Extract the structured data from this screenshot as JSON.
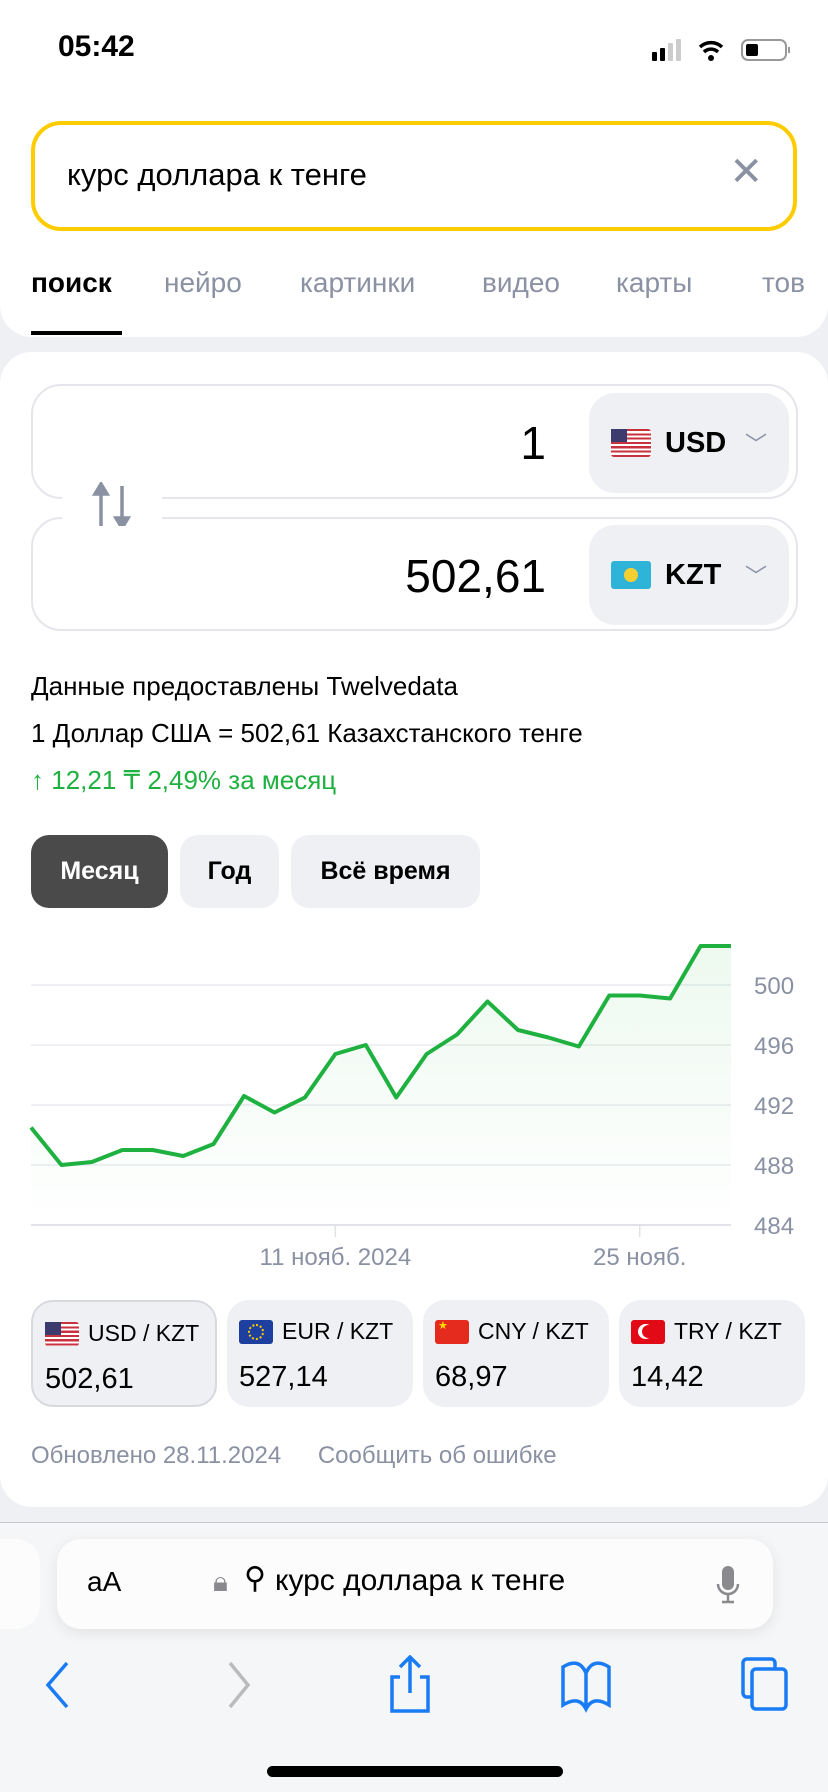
{
  "status_bar": {
    "time": "05:42"
  },
  "search": {
    "query": "курс доллара к тенге"
  },
  "tabs": [
    {
      "label": "поиск",
      "active": true
    },
    {
      "label": "нейро"
    },
    {
      "label": "картинки"
    },
    {
      "label": "видео"
    },
    {
      "label": "карты"
    },
    {
      "label": "тов"
    }
  ],
  "converter": {
    "from": {
      "amount": "1",
      "currency": "USD"
    },
    "to": {
      "amount": "502,61",
      "currency": "KZT"
    },
    "source": "Данные предоставлены Twelvedata",
    "rate_text": "1 Доллар США = 502,61 Казахстанского тенге",
    "change": {
      "arrow": "↑",
      "abs": "12,21 ₸",
      "pct": "2,49%",
      "period": "за месяц"
    },
    "accent_green": "#1fb140"
  },
  "periods": [
    {
      "label": "Месяц",
      "active": true
    },
    {
      "label": "Год"
    },
    {
      "label": "Всё время"
    }
  ],
  "chart_data": {
    "type": "area",
    "x": [
      "2024-10-28",
      "2024-10-29",
      "2024-10-30",
      "2024-10-31",
      "2024-11-01",
      "2024-11-04",
      "2024-11-05",
      "2024-11-06",
      "2024-11-07",
      "2024-11-08",
      "2024-11-11",
      "2024-11-12",
      "2024-11-13",
      "2024-11-14",
      "2024-11-15",
      "2024-11-18",
      "2024-11-19",
      "2024-11-20",
      "2024-11-21",
      "2024-11-22",
      "2024-11-25",
      "2024-11-26",
      "2024-11-27",
      "2024-11-28"
    ],
    "values": [
      490.5,
      488.0,
      488.2,
      489.0,
      489.0,
      488.6,
      489.4,
      492.6,
      491.5,
      492.5,
      495.4,
      496.0,
      492.5,
      495.4,
      496.7,
      498.9,
      497.0,
      496.5,
      495.9,
      499.3,
      499.3,
      499.1,
      502.6,
      502.6
    ],
    "ylim": [
      484,
      502.7
    ],
    "yticks": [
      "500",
      "496",
      "492",
      "488",
      "484"
    ],
    "xticks": [
      {
        "label": "11 нояб. 2024",
        "index": 10
      },
      {
        "label": "25 нояб.",
        "index": 20
      }
    ],
    "grid": true,
    "color": "#1fb140"
  },
  "pairs": [
    {
      "label": "USD / KZT",
      "value": "502,61",
      "flag": "us",
      "selected": true
    },
    {
      "label": "EUR / KZT",
      "value": "527,14",
      "flag": "eu"
    },
    {
      "label": "CNY / KZT",
      "value": "68,97",
      "flag": "cn"
    },
    {
      "label": "TRY / KZT",
      "value": "14,42",
      "flag": "tr"
    }
  ],
  "footer": {
    "updated": "Обновлено 28.11.2024",
    "report": "Сообщить об ошибке"
  },
  "browser": {
    "text_size": "aA",
    "address": "курс доллара к тенге"
  }
}
